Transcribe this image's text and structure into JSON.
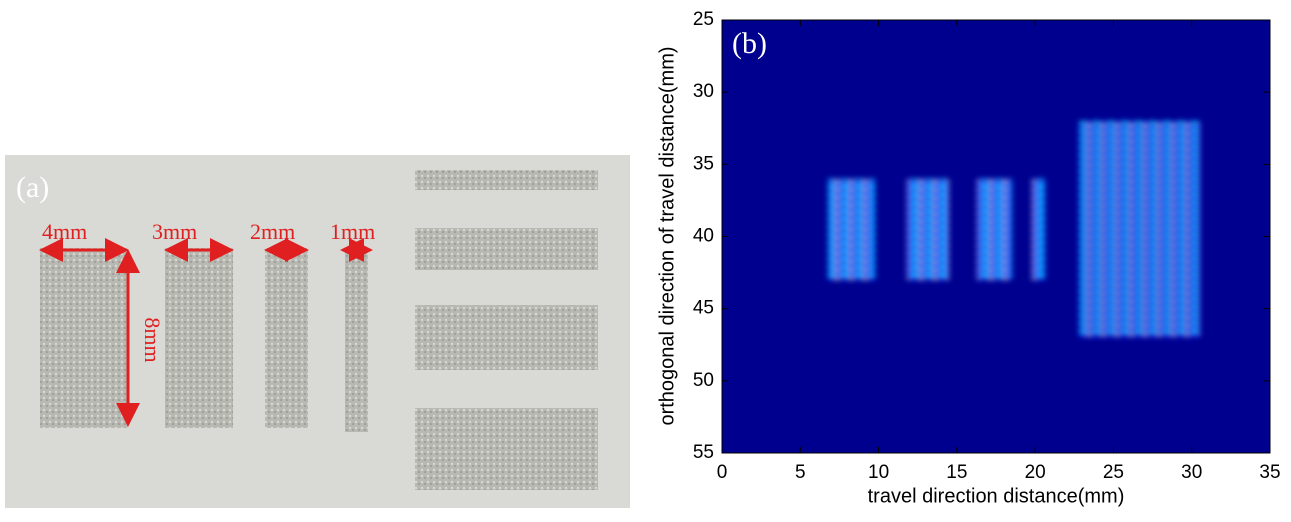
{
  "panel_a": {
    "label": "(a)",
    "annotations": [
      "4mm",
      "3mm",
      "2mm",
      "1mm",
      "8mm"
    ]
  },
  "chart_data": {
    "type": "heatmap",
    "panel_label": "(b)",
    "xlabel": "travel direction distance(mm)",
    "ylabel": "orthogonal direction of travel distance(mm)",
    "xlim": [
      0,
      35
    ],
    "xticks": [
      0,
      5,
      10,
      15,
      20,
      25,
      30,
      35
    ],
    "ylim": [
      55,
      25
    ],
    "yticks": [
      25,
      30,
      35,
      40,
      45,
      50,
      55
    ]
  }
}
